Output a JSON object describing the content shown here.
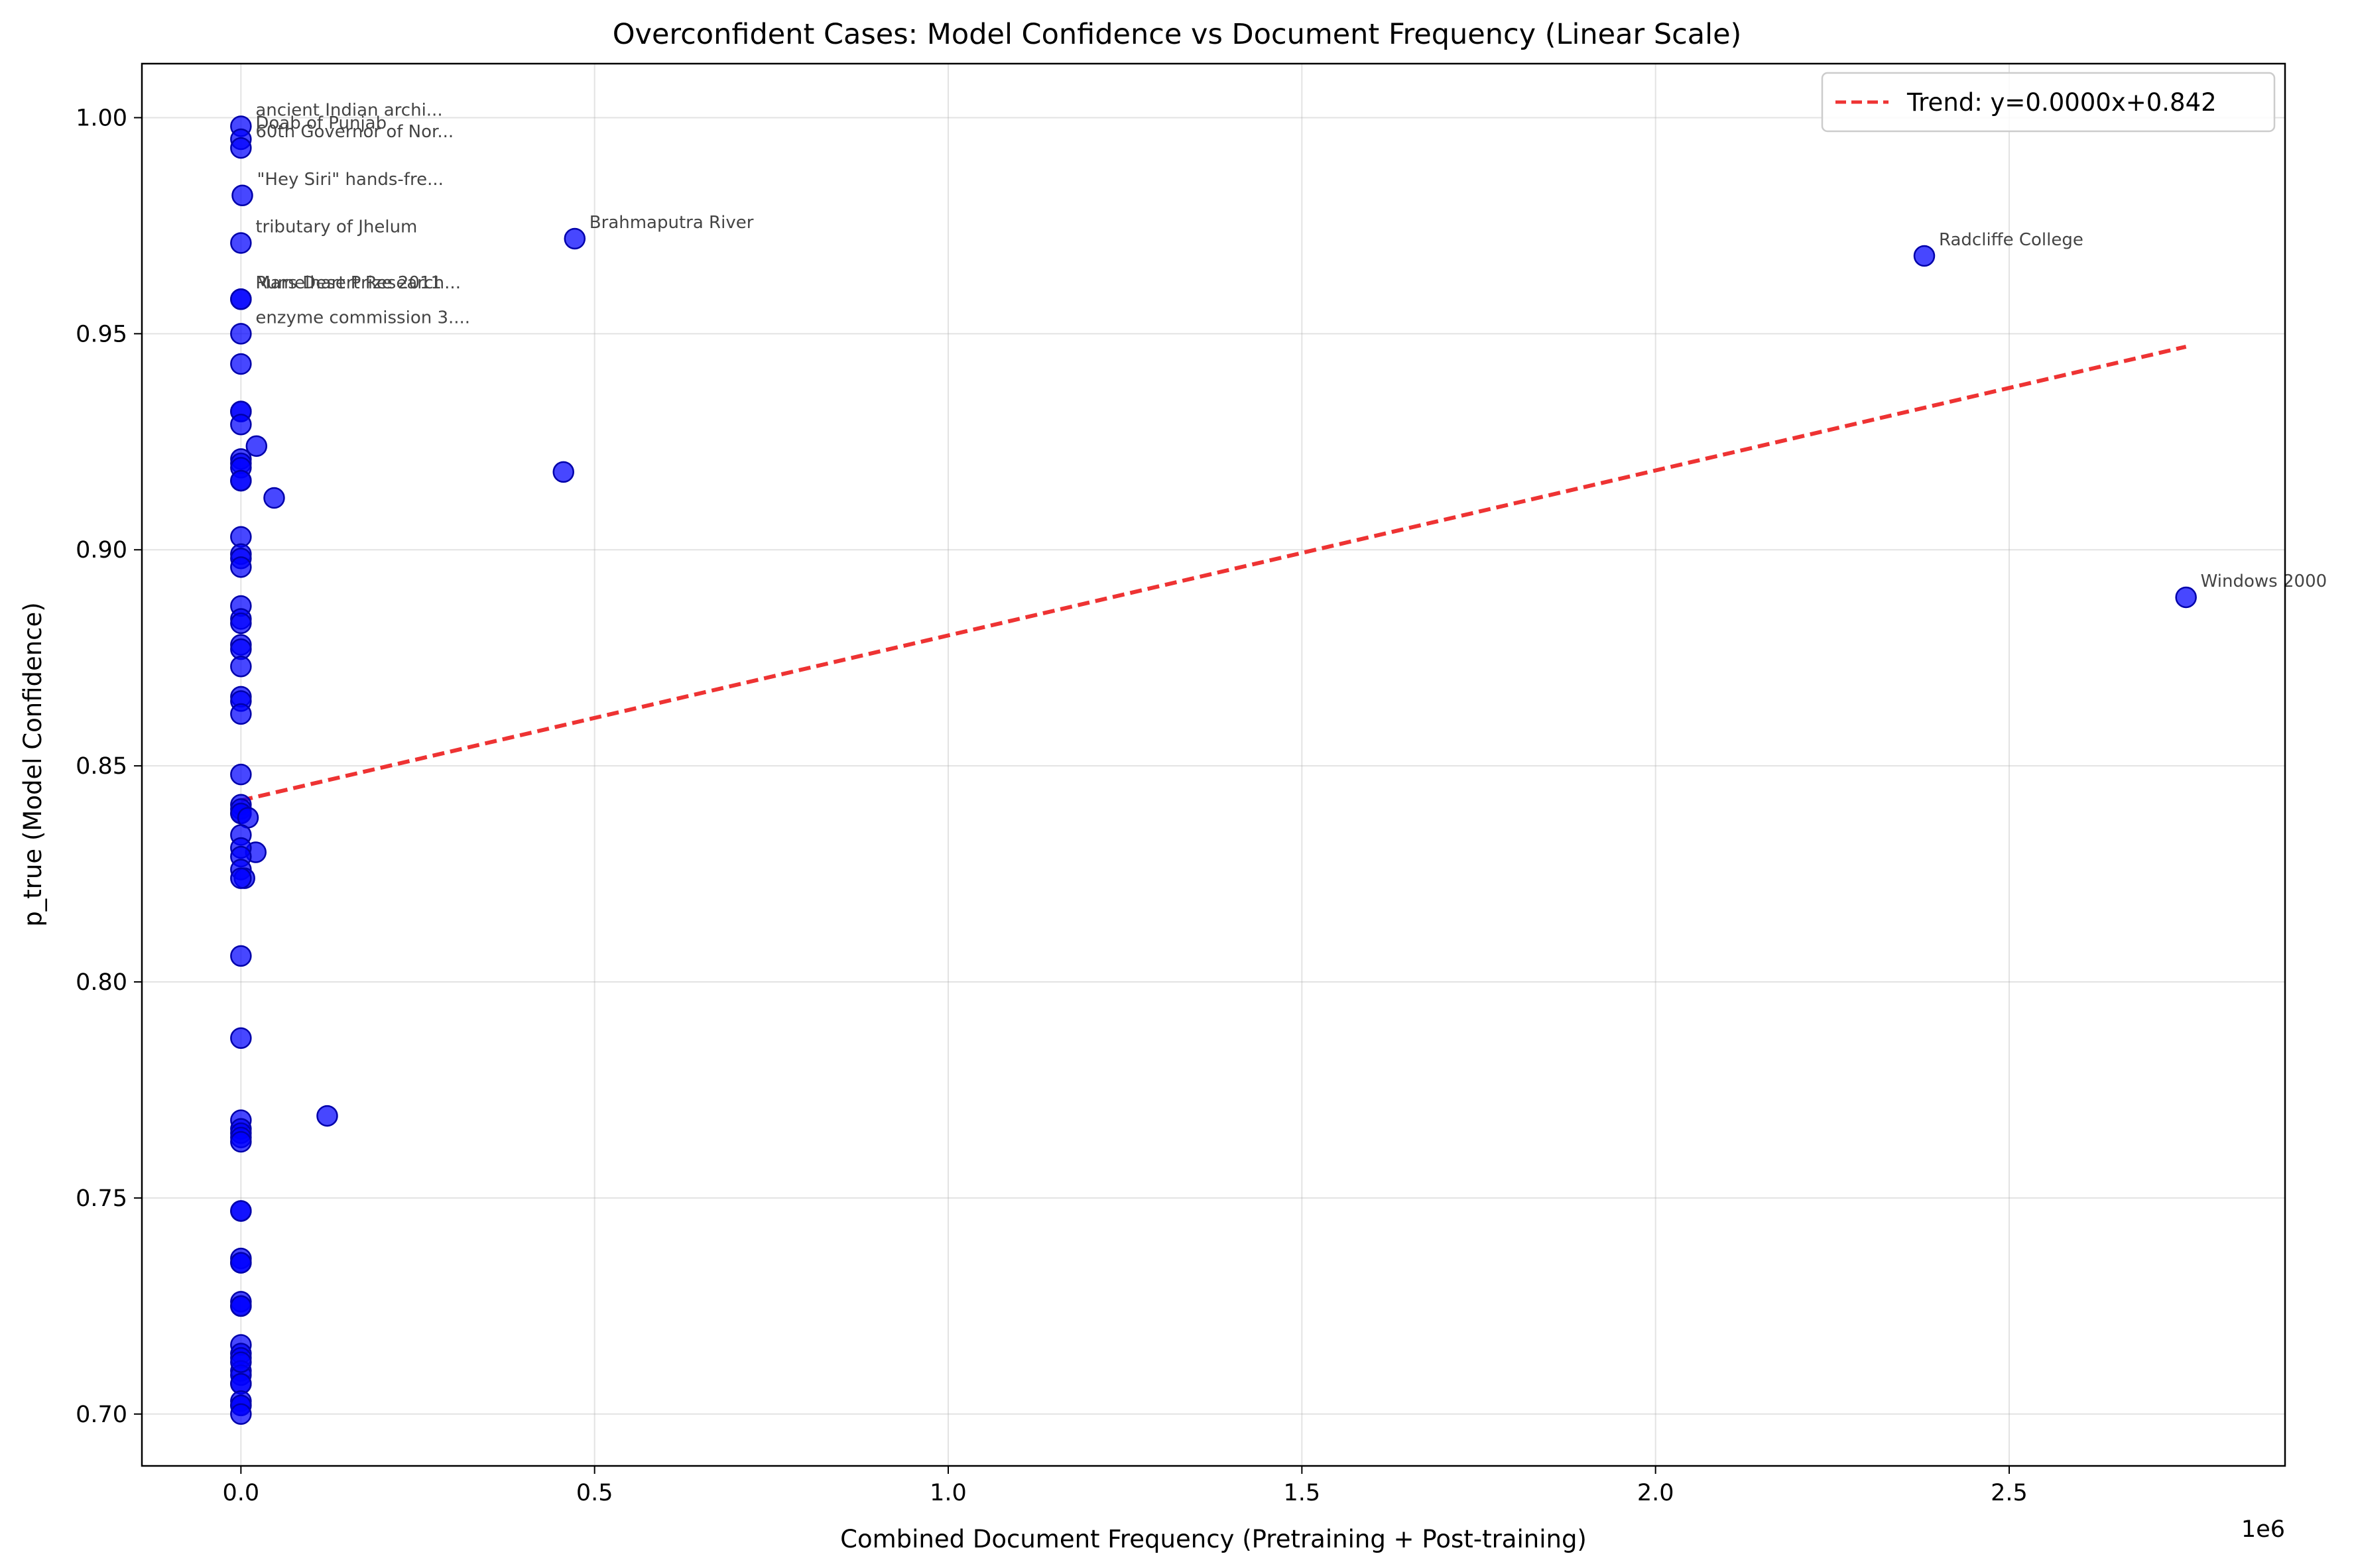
{
  "chart_data": {
    "type": "scatter",
    "title": "Overconfident Cases: Model Confidence vs Document Frequency (Linear Scale)",
    "xlabel": "Combined Document Frequency (Pretraining + Post-training)",
    "ylabel": "p_true (Model Confidence)",
    "x_offset_label": "1e6",
    "xlim": [
      -140000,
      2890000
    ],
    "ylim": [
      0.688,
      1.0125
    ],
    "x_ticks": [
      0,
      500000,
      1000000,
      1500000,
      2000000,
      2500000
    ],
    "x_tick_labels": [
      "0.0",
      "0.5",
      "1.0",
      "1.5",
      "2.0",
      "2.5"
    ],
    "y_ticks": [
      0.7,
      0.75,
      0.8,
      0.85,
      0.9,
      0.95,
      1.0
    ],
    "y_tick_labels": [
      "0.70",
      "0.75",
      "0.80",
      "0.85",
      "0.90",
      "0.95",
      "1.00"
    ],
    "grid": true,
    "legend_position": "top-right",
    "point_color": "#0000ff",
    "trend_color": "#ee3333",
    "trend": {
      "label": "Trend: y=0.0000x+0.842",
      "x": [
        0,
        2750000
      ],
      "y": [
        0.842,
        0.947
      ]
    },
    "points": {
      "x": [
        0,
        0,
        0,
        2000,
        0,
        0,
        0,
        0,
        0,
        0,
        0,
        0,
        0,
        0,
        0,
        0,
        0,
        22000,
        0,
        0,
        47000,
        0,
        0,
        0,
        0,
        0,
        0,
        0,
        0,
        0,
        0,
        0,
        0,
        0,
        0,
        0,
        0,
        10000,
        0,
        21000,
        0,
        0,
        0,
        5000,
        0,
        0,
        0,
        0,
        0,
        0,
        0,
        0,
        0,
        0,
        0,
        0,
        0,
        0,
        0,
        0,
        0,
        0,
        0,
        0,
        0,
        0,
        0,
        0,
        0,
        0,
        0,
        0,
        472000,
        2380000,
        2750000,
        456000,
        122000
      ],
      "y": [
        0.998,
        0.995,
        0.993,
        0.982,
        0.971,
        0.958,
        0.958,
        0.95,
        0.943,
        0.932,
        0.932,
        0.929,
        0.921,
        0.92,
        0.919,
        0.916,
        0.916,
        0.924,
        0.903,
        0.899,
        0.912,
        0.898,
        0.896,
        0.887,
        0.884,
        0.883,
        0.878,
        0.877,
        0.873,
        0.866,
        0.865,
        0.862,
        0.848,
        0.841,
        0.84,
        0.839,
        0.839,
        0.838,
        0.834,
        0.83,
        0.831,
        0.829,
        0.826,
        0.824,
        0.824,
        0.806,
        0.787,
        0.768,
        0.766,
        0.765,
        0.764,
        0.763,
        0.747,
        0.747,
        0.736,
        0.735,
        0.726,
        0.725,
        0.716,
        0.714,
        0.713,
        0.71,
        0.709,
        0.707,
        0.707,
        0.703,
        0.702,
        0.702,
        0.7,
        0.725,
        0.735,
        0.712,
        0.972,
        0.968,
        0.889,
        0.918,
        0.769
      ]
    },
    "annotations": [
      {
        "text": "ancient Indian archi...",
        "x": 0,
        "y": 0.998
      },
      {
        "text": "Doab of Punjab",
        "x": 0,
        "y": 0.995
      },
      {
        "text": "60th Governor of Nor...",
        "x": 0,
        "y": 0.993
      },
      {
        "text": "\"Hey Siri\" hands-fre...",
        "x": 2000,
        "y": 0.982
      },
      {
        "text": "tributary of Jhelum",
        "x": 0,
        "y": 0.971
      },
      {
        "text": "Mars Desert Research...",
        "x": 0,
        "y": 0.958
      },
      {
        "text": "Rumelhart Prize 2011",
        "x": 0,
        "y": 0.958
      },
      {
        "text": "enzyme commission 3....",
        "x": 0,
        "y": 0.95
      },
      {
        "text": "Brahmaputra River",
        "x": 472000,
        "y": 0.972
      },
      {
        "text": "Radcliffe College",
        "x": 2380000,
        "y": 0.968
      },
      {
        "text": "Windows 2000",
        "x": 2750000,
        "y": 0.889
      }
    ]
  }
}
